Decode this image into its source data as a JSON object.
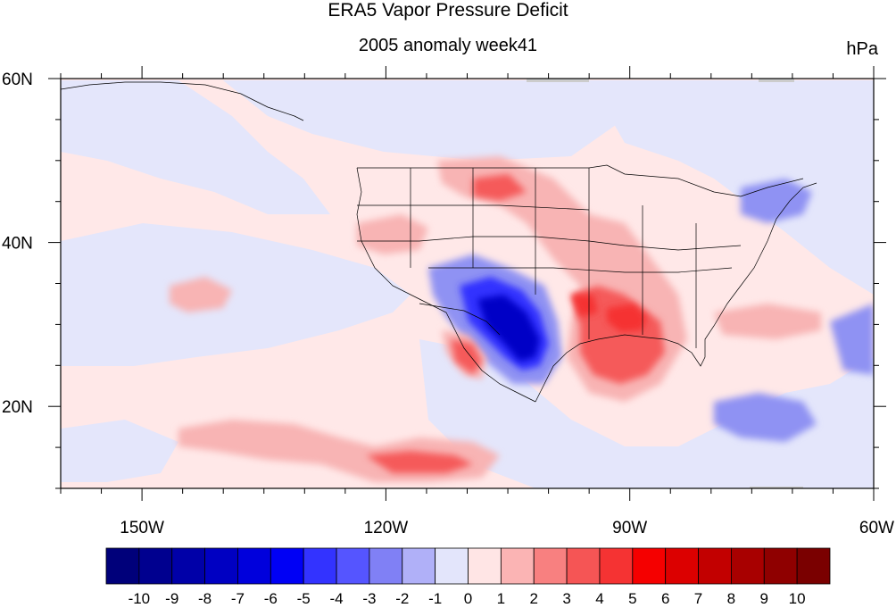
{
  "title": "ERA5 Vapor Pressure Deficit",
  "subtitle": "2005 anomaly week41",
  "units": "hPa",
  "map": {
    "lon_range": [
      -160,
      -60
    ],
    "lat_range": [
      10,
      60
    ],
    "lon_ticks": [
      {
        "lon": -150,
        "label": "150W"
      },
      {
        "lon": -120,
        "label": "120W"
      },
      {
        "lon": -90,
        "label": "90W"
      },
      {
        "lon": -60,
        "label": "60W"
      }
    ],
    "lat_ticks": [
      {
        "lat": 60,
        "label": "60N"
      },
      {
        "lat": 40,
        "label": "40N"
      },
      {
        "lat": 20,
        "label": "20N"
      }
    ]
  },
  "colorbar": {
    "labels": [
      "-10",
      "-9",
      "-8",
      "-7",
      "-6",
      "-5",
      "-4",
      "-3",
      "-2",
      "-1",
      "0",
      "1",
      "2",
      "3",
      "4",
      "5",
      "6",
      "7",
      "8",
      "9",
      "10"
    ],
    "colors": [
      "#00007a",
      "#00008f",
      "#0000a8",
      "#0000c2",
      "#0000dc",
      "#0000f5",
      "#3333ff",
      "#5555ff",
      "#8080f5",
      "#b0b0f8",
      "#e3e5fb",
      "#ffe5e5",
      "#fbb4b4",
      "#f88080",
      "#f55555",
      "#f53333",
      "#f50000",
      "#dc0000",
      "#c20000",
      "#a80000",
      "#8f0000",
      "#7a0000"
    ]
  }
}
